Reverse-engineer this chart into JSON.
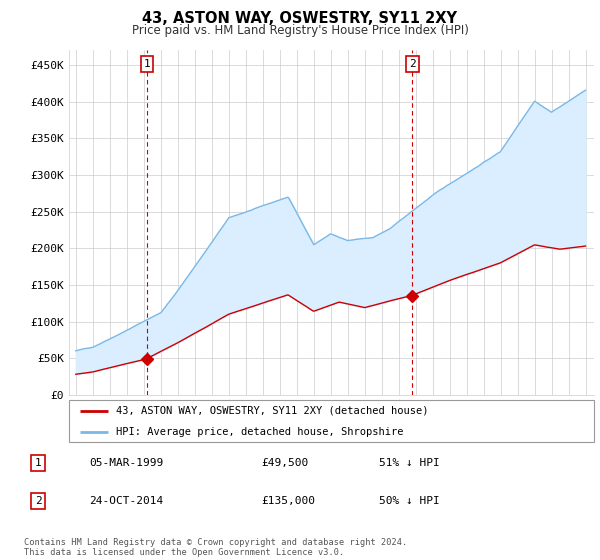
{
  "title": "43, ASTON WAY, OSWESTRY, SY11 2XY",
  "subtitle": "Price paid vs. HM Land Registry's House Price Index (HPI)",
  "ylim": [
    0,
    470000
  ],
  "yticks": [
    0,
    50000,
    100000,
    150000,
    200000,
    250000,
    300000,
    350000,
    400000,
    450000
  ],
  "ytick_labels": [
    "£0",
    "£50K",
    "£100K",
    "£150K",
    "£200K",
    "£250K",
    "£300K",
    "£350K",
    "£400K",
    "£450K"
  ],
  "hpi_color": "#7ab8e8",
  "hpi_fill_color": "#daeeff",
  "price_color": "#cc0000",
  "marker_color": "#cc0000",
  "annotation_box_color": "#cc0000",
  "purchase1_date": 1999.18,
  "purchase1_price": 49500,
  "purchase2_date": 2014.81,
  "purchase2_price": 135000,
  "legend_label1": "43, ASTON WAY, OSWESTRY, SY11 2XY (detached house)",
  "legend_label2": "HPI: Average price, detached house, Shropshire",
  "table_row1": [
    "1",
    "05-MAR-1999",
    "£49,500",
    "51% ↓ HPI"
  ],
  "table_row2": [
    "2",
    "24-OCT-2014",
    "£135,000",
    "50% ↓ HPI"
  ],
  "footnote": "Contains HM Land Registry data © Crown copyright and database right 2024.\nThis data is licensed under the Open Government Licence v3.0.",
  "background_color": "#ffffff",
  "grid_color": "#cccccc"
}
